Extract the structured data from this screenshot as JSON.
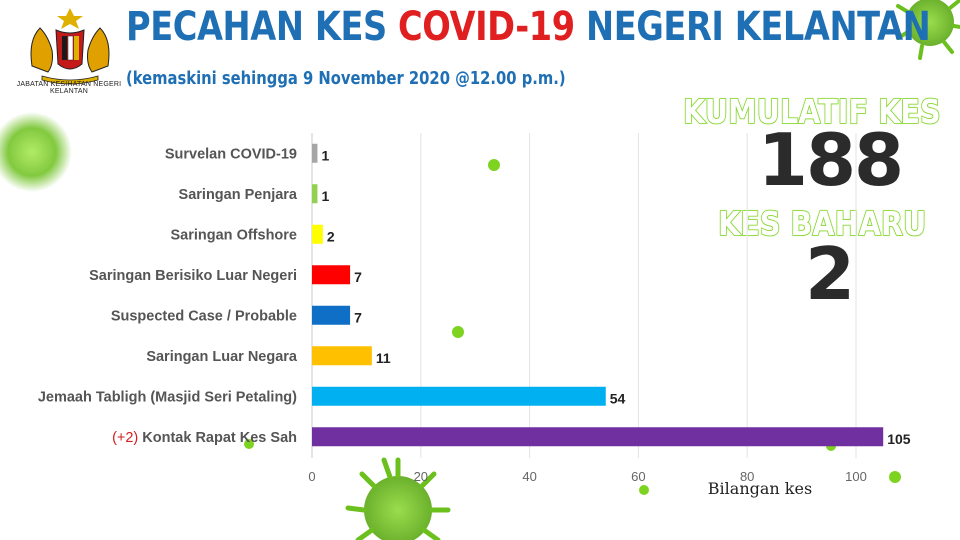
{
  "header": {
    "title_part1": "PECAHAN KES",
    "title_part2": "COVID-19",
    "title_part3": "NEGERI KELANTAN",
    "subtitle": "(kemaskini sehingga 9 November 2020 @12.00 p.m.)",
    "logo_caption": "JABATAN KESIHATAN NEGERI KELANTAN"
  },
  "stats": {
    "cumulative_label": "KUMULATIF KES",
    "cumulative_value": "188",
    "new_label": "KES BAHARU",
    "new_value": "2"
  },
  "colors": {
    "title_blue": "#1f6fb5",
    "title_red": "#e02020",
    "stat_green": "#7ed321"
  },
  "chart_data": {
    "type": "bar",
    "orientation": "horizontal",
    "categories": [
      "Survelan COVID-19",
      "Saringan Penjara",
      "Saringan Offshore",
      "Saringan Berisiko Luar Negeri",
      "Suspected Case / Probable",
      "Saringan Luar Negara",
      "Jemaah Tabligh (Masjid Seri Petaling)",
      "Kontak Rapat Kes Sah"
    ],
    "category_prefix": [
      "",
      "",
      "",
      "",
      "",
      "",
      "",
      "(+2)"
    ],
    "values": [
      1,
      1,
      2,
      7,
      7,
      11,
      54,
      105
    ],
    "bar_colors": [
      "#a6a6a6",
      "#92d050",
      "#ffff00",
      "#ff0000",
      "#0f6fc6",
      "#ffc000",
      "#00b0f0",
      "#7030a0"
    ],
    "xlim": [
      0,
      110
    ],
    "xticks": [
      0,
      20,
      40,
      60,
      80,
      100
    ],
    "xlabel": "Bilangan kes",
    "grid": true
  }
}
